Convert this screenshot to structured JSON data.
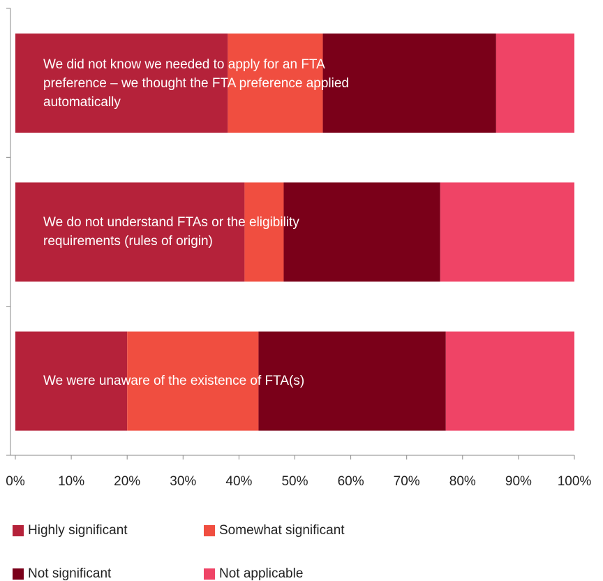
{
  "chart_data": {
    "type": "stacked_barh",
    "categories": [
      "We did not know we needed to apply for an FTA preference – we thought the FTA preference applied automatically",
      "We do not understand FTAs or the eligibility requirements (rules of origin)",
      "We were unaware of the existence of FTA(s)"
    ],
    "series": [
      {
        "name": "Highly significant",
        "color": "#b5223a",
        "values": [
          38,
          41,
          20
        ]
      },
      {
        "name": "Somewhat significant",
        "color": "#f04e40",
        "values": [
          17,
          7,
          23.5
        ]
      },
      {
        "name": "Not significant",
        "color": "#7a0019",
        "values": [
          31,
          28,
          33.5
        ]
      },
      {
        "name": "Not applicable",
        "color": "#ef4466",
        "values": [
          14,
          24,
          23
        ]
      }
    ],
    "xlim": [
      0,
      100
    ],
    "xticks": [
      {
        "value": 0,
        "label": "0%"
      },
      {
        "value": 10,
        "label": "10%"
      },
      {
        "value": 20,
        "label": "20%"
      },
      {
        "value": 30,
        "label": "30%"
      },
      {
        "value": 40,
        "label": "40%"
      },
      {
        "value": 50,
        "label": "50%"
      },
      {
        "value": 60,
        "label": "60%"
      },
      {
        "value": 70,
        "label": "70%"
      },
      {
        "value": 80,
        "label": "80%"
      },
      {
        "value": 90,
        "label": "90%"
      },
      {
        "value": 100,
        "label": "100%"
      }
    ]
  }
}
